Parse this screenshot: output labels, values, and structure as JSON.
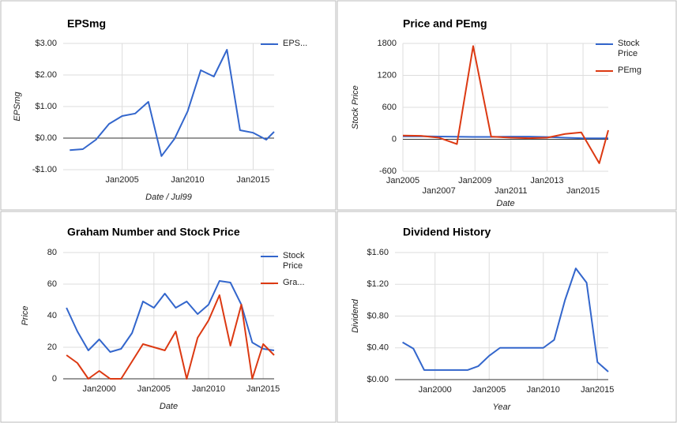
{
  "chart_data": [
    {
      "type": "line",
      "title": "EPSmg",
      "y_label": "EPSmg",
      "x_label": "Date / Jul99",
      "x": [
        2001,
        2002,
        2003,
        2004,
        2005,
        2006,
        2007,
        2008,
        2009,
        2010,
        2011,
        2012,
        2013,
        2014,
        2015,
        2016,
        2016.6
      ],
      "series": [
        {
          "name": "EPS...",
          "color": "#3366cc",
          "values": [
            -0.38,
            -0.35,
            -0.05,
            0.45,
            0.7,
            0.78,
            1.15,
            -0.57,
            -0.02,
            0.85,
            2.15,
            1.95,
            2.8,
            0.25,
            0.17,
            -0.05,
            0.2
          ]
        }
      ],
      "xlim": [
        2000.5,
        2016.6
      ],
      "xticks": [
        {
          "value": 2005,
          "label": "Jan2005"
        },
        {
          "value": 2010,
          "label": "Jan2010"
        },
        {
          "value": 2015,
          "label": "Jan2015"
        }
      ],
      "ylim": [
        -1,
        3
      ],
      "yticks": [
        {
          "value": -1,
          "label": "-$1.00"
        },
        {
          "value": 0,
          "label": "$0.00"
        },
        {
          "value": 1,
          "label": "$1.00"
        },
        {
          "value": 2,
          "label": "$2.00"
        },
        {
          "value": 3,
          "label": "$3.00"
        }
      ],
      "grid": true
    },
    {
      "type": "line",
      "title": "Price and PEmg",
      "y_label": "Stock Price",
      "x_label": "Date",
      "x": [
        2005,
        2006,
        2007,
        2008,
        2008.9,
        2009.9,
        2011,
        2012,
        2013,
        2014,
        2014.9,
        2015.9,
        2016.4
      ],
      "series": [
        {
          "name": "Stock Price",
          "color": "#3366cc",
          "values": [
            55,
            58,
            52,
            48,
            45,
            45,
            50,
            50,
            42,
            30,
            20,
            18,
            20
          ]
        },
        {
          "name": "PEmg",
          "color": "#dc3912",
          "values": [
            70,
            65,
            30,
            -90,
            1750,
            50,
            30,
            20,
            30,
            100,
            130,
            -450,
            170
          ]
        }
      ],
      "xlim": [
        2005,
        2016.4
      ],
      "xticks": [
        {
          "value": 2005,
          "label": "Jan2005"
        },
        {
          "value": 2007,
          "label": "Jan2007"
        },
        {
          "value": 2009,
          "label": "Jan2009"
        },
        {
          "value": 2011,
          "label": "Jan2011"
        },
        {
          "value": 2013,
          "label": "Jan2013"
        },
        {
          "value": 2015,
          "label": "Jan2015"
        }
      ],
      "ylim": [
        -600,
        1800
      ],
      "yticks": [
        -600,
        0,
        600,
        1200,
        1800
      ],
      "grid": true
    },
    {
      "type": "line",
      "title": "Graham Number and Stock Price",
      "y_label": "Price",
      "x_label": "Date",
      "x": [
        1997,
        1998,
        1999,
        2000,
        2001,
        2002,
        2003,
        2004,
        2005,
        2006,
        2007,
        2008,
        2009,
        2010,
        2011,
        2012,
        2013,
        2014,
        2015,
        2016
      ],
      "series": [
        {
          "name": "Stock Price",
          "color": "#3366cc",
          "values": [
            45,
            30,
            18,
            25,
            17,
            19,
            29,
            49,
            45,
            54,
            45,
            49,
            41,
            47,
            62,
            61,
            47,
            23,
            19,
            18
          ]
        },
        {
          "name": "Gra...",
          "color": "#dc3912",
          "values": [
            15,
            10,
            0,
            5,
            0,
            0,
            11,
            22,
            20,
            18,
            30,
            0,
            26,
            37,
            53,
            21,
            47,
            0,
            22,
            15
          ]
        }
      ],
      "xlim": [
        1996.7,
        2016
      ],
      "xticks": [
        {
          "value": 2000,
          "label": "Jan2000"
        },
        {
          "value": 2005,
          "label": "Jan2005"
        },
        {
          "value": 2010,
          "label": "Jan2010"
        },
        {
          "value": 2015,
          "label": "Jan2015"
        }
      ],
      "ylim": [
        0,
        80
      ],
      "yticks": [
        0,
        20,
        40,
        60,
        80
      ],
      "grid": true
    },
    {
      "type": "line",
      "title": "Dividend History",
      "y_label": "Dividend",
      "x_label": "Year",
      "x": [
        1997,
        1998,
        1999,
        2000,
        2001,
        2002,
        2003,
        2004,
        2005,
        2006,
        2007,
        2008,
        2009,
        2010,
        2011,
        2012,
        2013,
        2014,
        2015,
        2016
      ],
      "series": [
        {
          "color": "#3366cc",
          "values": [
            0.47,
            0.39,
            0.12,
            0.12,
            0.12,
            0.12,
            0.12,
            0.17,
            0.3,
            0.4,
            0.4,
            0.4,
            0.4,
            0.4,
            0.5,
            1.0,
            1.4,
            1.22,
            0.22,
            0.1
          ]
        }
      ],
      "xlim": [
        1996.3,
        2016
      ],
      "xticks": [
        {
          "value": 2000,
          "label": "Jan2000"
        },
        {
          "value": 2005,
          "label": "Jan2005"
        },
        {
          "value": 2010,
          "label": "Jan2010"
        },
        {
          "value": 2015,
          "label": "Jan2015"
        }
      ],
      "ylim": [
        0,
        1.6
      ],
      "yticks": [
        {
          "value": 0,
          "label": "$0.00"
        },
        {
          "value": 0.4,
          "label": "$0.40"
        },
        {
          "value": 0.8,
          "label": "$0.80"
        },
        {
          "value": 1.2,
          "label": "$1.20"
        },
        {
          "value": 1.6,
          "label": "$1.60"
        }
      ],
      "grid": true
    }
  ]
}
